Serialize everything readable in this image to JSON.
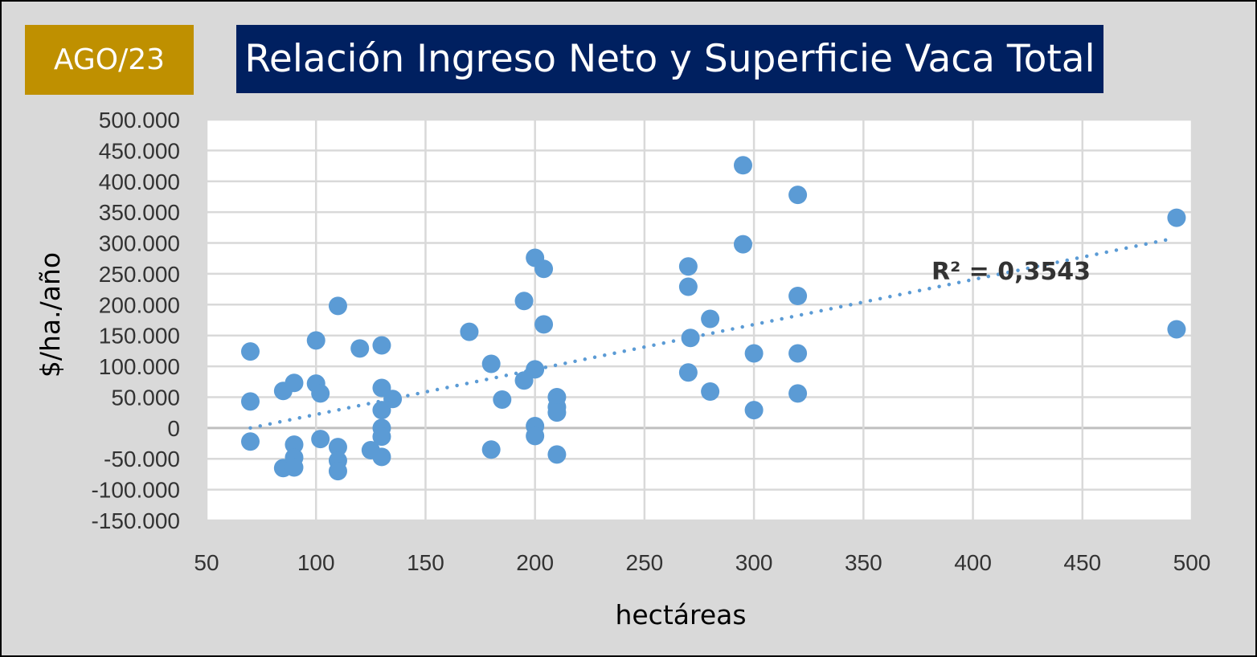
{
  "badge": {
    "label": "AGO/23",
    "color": "#bf9000"
  },
  "chart_data": {
    "type": "scatter",
    "title": "Relación Ingreso Neto y Superficie Vaca Total",
    "xlabel": "hectáreas",
    "ylabel": "$/ha./año",
    "xlim": [
      50,
      500
    ],
    "ylim": [
      -150000,
      500000
    ],
    "xticks": [
      50,
      100,
      150,
      200,
      250,
      300,
      350,
      400,
      450,
      500
    ],
    "xtick_labels": [
      "50",
      "100",
      "150",
      "200",
      "250",
      "300",
      "350",
      "400",
      "450",
      "500"
    ],
    "yticks": [
      500000,
      450000,
      400000,
      350000,
      300000,
      250000,
      200000,
      150000,
      100000,
      50000,
      0,
      -50000,
      -100000,
      -150000
    ],
    "ytick_labels": [
      "500.000",
      "450.000",
      "400.000",
      "350.000",
      "300.000",
      "250.000",
      "200.000",
      "150.000",
      "100.000",
      "50.000",
      "0",
      "-50.000",
      "-100.000",
      "-150.000"
    ],
    "grid": true,
    "marker_color": "#5b9bd5",
    "points": [
      [
        70,
        124000
      ],
      [
        70,
        43000
      ],
      [
        70,
        -22000
      ],
      [
        85,
        60000
      ],
      [
        85,
        -65000
      ],
      [
        90,
        73000
      ],
      [
        90,
        -27000
      ],
      [
        90,
        -48000
      ],
      [
        90,
        -64000
      ],
      [
        100,
        142000
      ],
      [
        100,
        72000
      ],
      [
        102,
        56000
      ],
      [
        102,
        -18000
      ],
      [
        110,
        198000
      ],
      [
        110,
        -31000
      ],
      [
        110,
        -53000
      ],
      [
        110,
        -70000
      ],
      [
        120,
        129000
      ],
      [
        125,
        -36000
      ],
      [
        130,
        134000
      ],
      [
        130,
        65000
      ],
      [
        130,
        29000
      ],
      [
        130,
        0
      ],
      [
        130,
        -14000
      ],
      [
        130,
        -47000
      ],
      [
        135,
        47000
      ],
      [
        170,
        156000
      ],
      [
        180,
        104000
      ],
      [
        180,
        -35000
      ],
      [
        185,
        46000
      ],
      [
        195,
        206000
      ],
      [
        195,
        77000
      ],
      [
        200,
        276000
      ],
      [
        200,
        95000
      ],
      [
        200,
        3000
      ],
      [
        200,
        -13000
      ],
      [
        204,
        258000
      ],
      [
        204,
        168000
      ],
      [
        210,
        50000
      ],
      [
        210,
        34000
      ],
      [
        210,
        25000
      ],
      [
        210,
        -43000
      ],
      [
        270,
        262000
      ],
      [
        270,
        229000
      ],
      [
        270,
        90000
      ],
      [
        271,
        146000
      ],
      [
        280,
        177000
      ],
      [
        280,
        59000
      ],
      [
        295,
        426000
      ],
      [
        295,
        298000
      ],
      [
        300,
        121000
      ],
      [
        300,
        29000
      ],
      [
        320,
        378000
      ],
      [
        320,
        214000
      ],
      [
        320,
        121000
      ],
      [
        320,
        56000
      ],
      [
        493,
        341000
      ],
      [
        493,
        160000
      ]
    ],
    "trendline": {
      "type": "linear",
      "style": "dotted",
      "from": [
        70,
        0
      ],
      "to": [
        491,
        307000
      ],
      "label": "R² = 0,3543"
    }
  }
}
